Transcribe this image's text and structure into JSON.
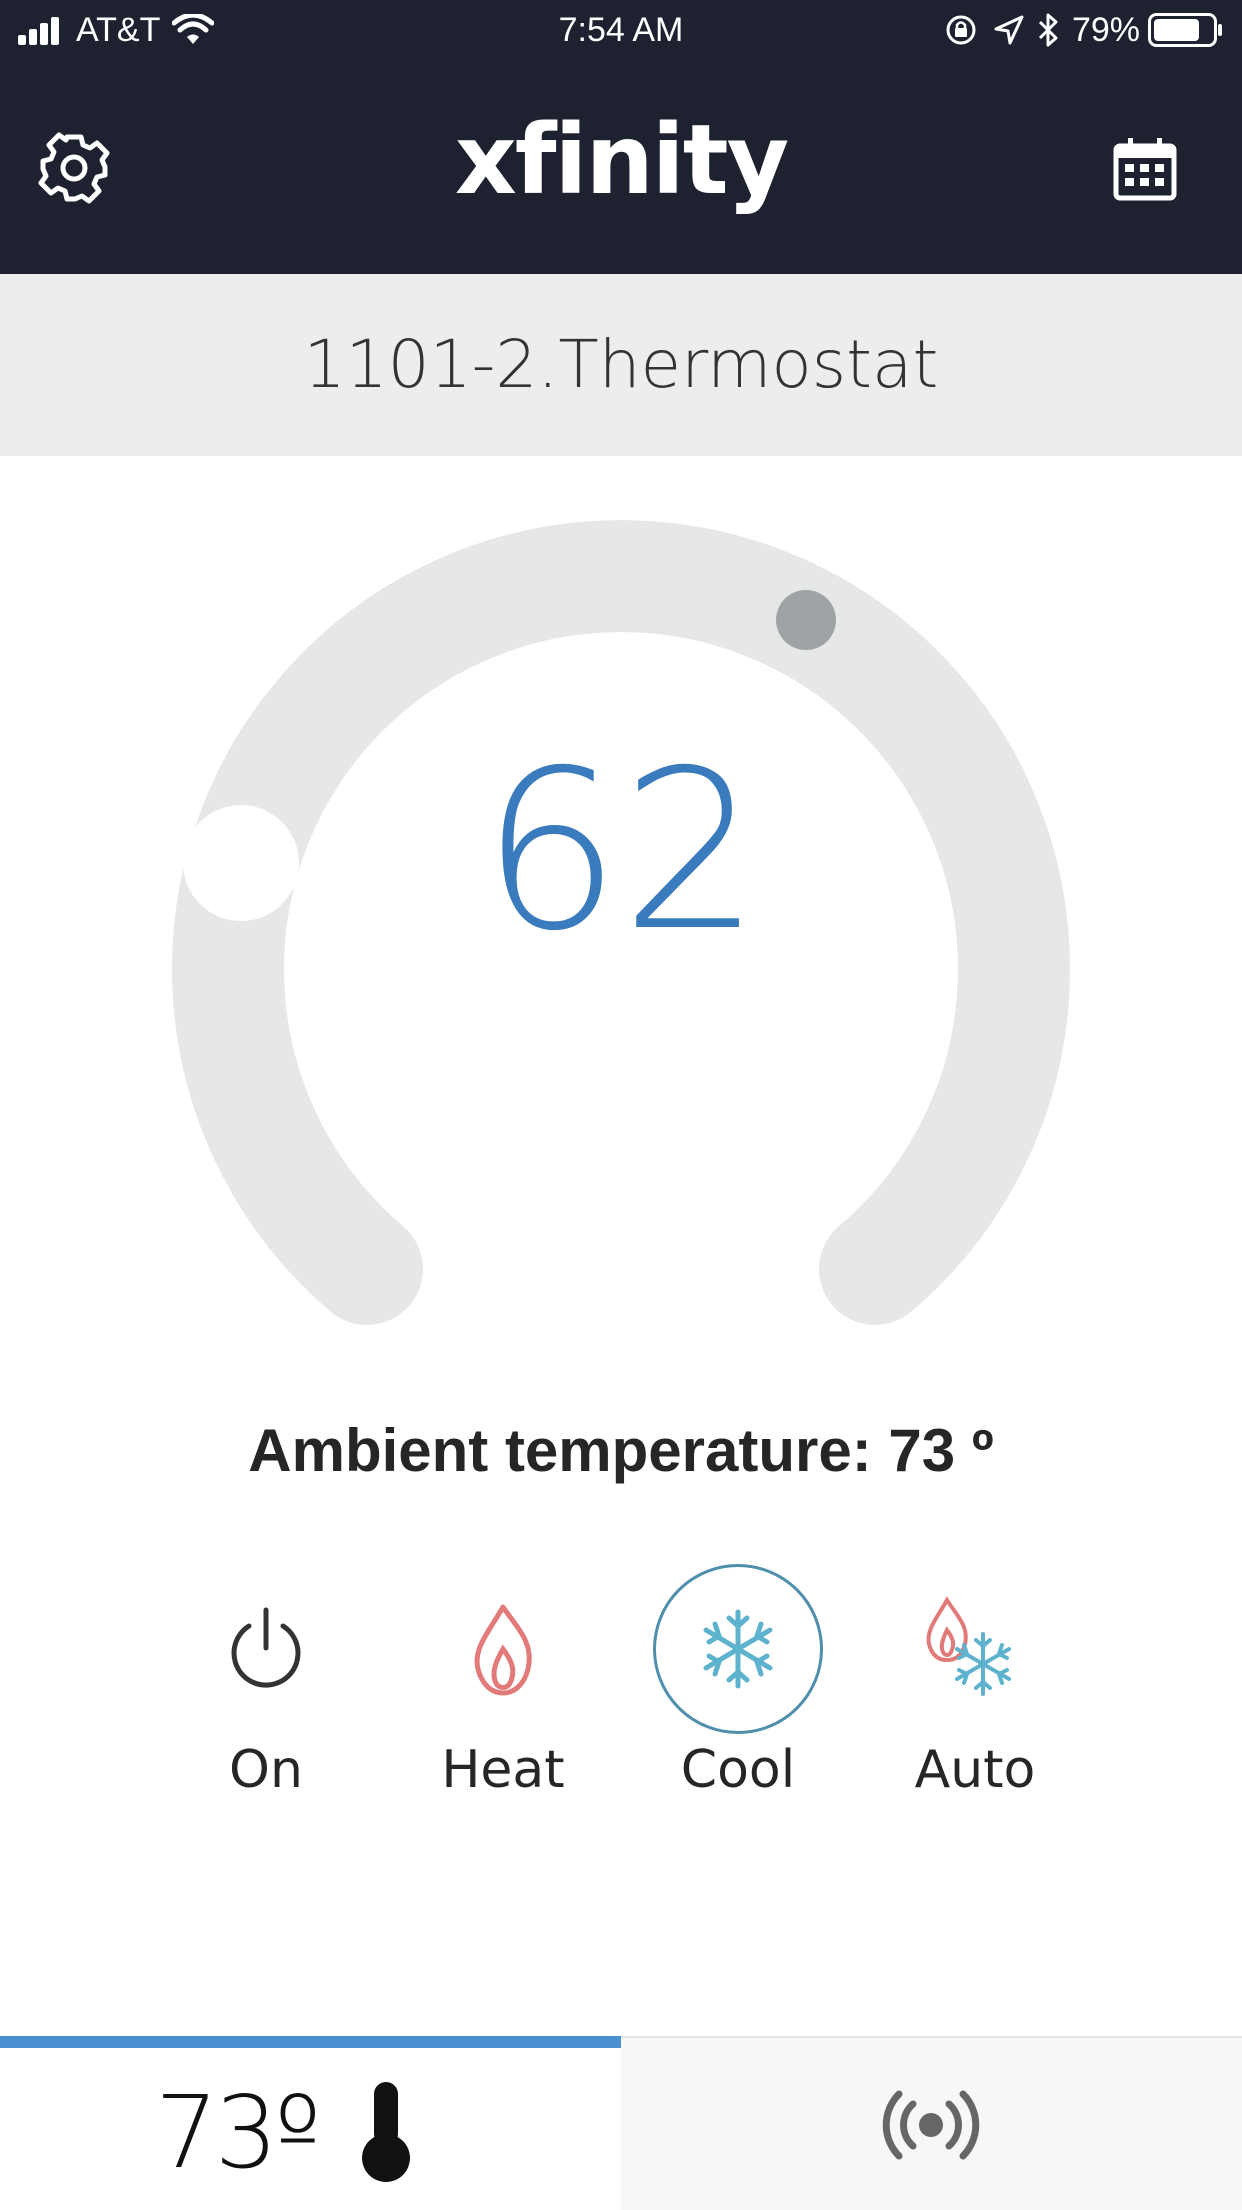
{
  "status_bar": {
    "carrier": "AT&T",
    "time": "7:54 AM",
    "battery": "79%",
    "battery_level": 0.79
  },
  "nav": {
    "brand": "xfinity",
    "settings_icon": "gear-icon",
    "schedule_icon": "calendar-icon"
  },
  "device": {
    "name": "1101-2.Thermostat"
  },
  "thermostat": {
    "setpoint": "62",
    "ambient_label": "Ambient temperature: 73 º",
    "colors": {
      "setpoint": "#3a7bbd",
      "track": "#e6e7e7",
      "heat": "#e37a7a",
      "cool": "#5db3cd"
    }
  },
  "modes": [
    {
      "label": "On",
      "icon": "power-icon",
      "selected": false
    },
    {
      "label": "Heat",
      "icon": "flame-icon",
      "selected": false
    },
    {
      "label": "Cool",
      "icon": "snowflake-icon",
      "selected": true
    },
    {
      "label": "Auto",
      "icon": "flame-snowflake-icon",
      "selected": false
    }
  ],
  "tabs": {
    "current_temp": "73º",
    "thermometer_icon": "thermometer-icon",
    "broadcast_icon": "broadcast-icon",
    "active": 0
  }
}
